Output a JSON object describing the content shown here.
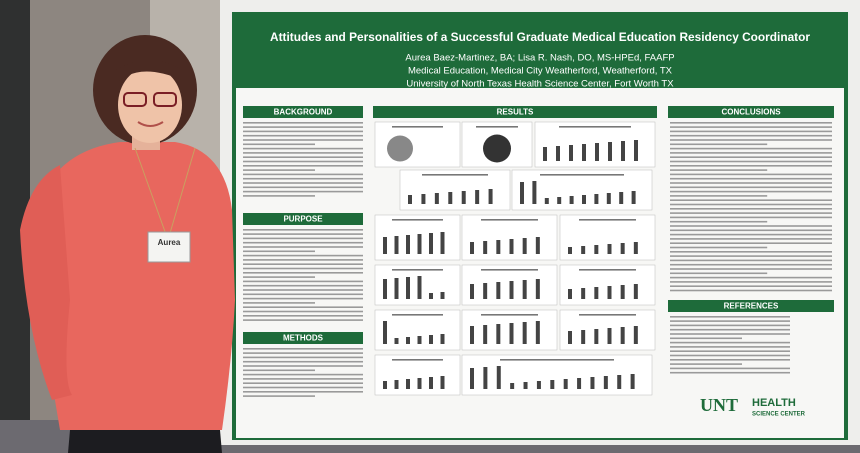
{
  "poster": {
    "title": "Attitudes and Personalities of a Successful Graduate Medical Education Residency Coordinator",
    "authors": "Aurea Baez-Martinez, BA; Lisa R. Nash, DO, MS-HPEd, FAAFP",
    "affiliation_1": "Medical Education, Medical City Weatherford, Weatherford, TX",
    "affiliation_2": "University of North Texas Health Science Center, Fort Worth TX",
    "sections": [
      "BACKGROUND",
      "PURPOSE",
      "METHODS",
      "RESULTS",
      "CONCLUSIONS",
      "REFERENCES"
    ],
    "logo": {
      "mark": "UNT",
      "name": "HEALTH",
      "sub": "SCIENCE CENTER"
    }
  },
  "badge": {
    "name": "Aurea"
  }
}
